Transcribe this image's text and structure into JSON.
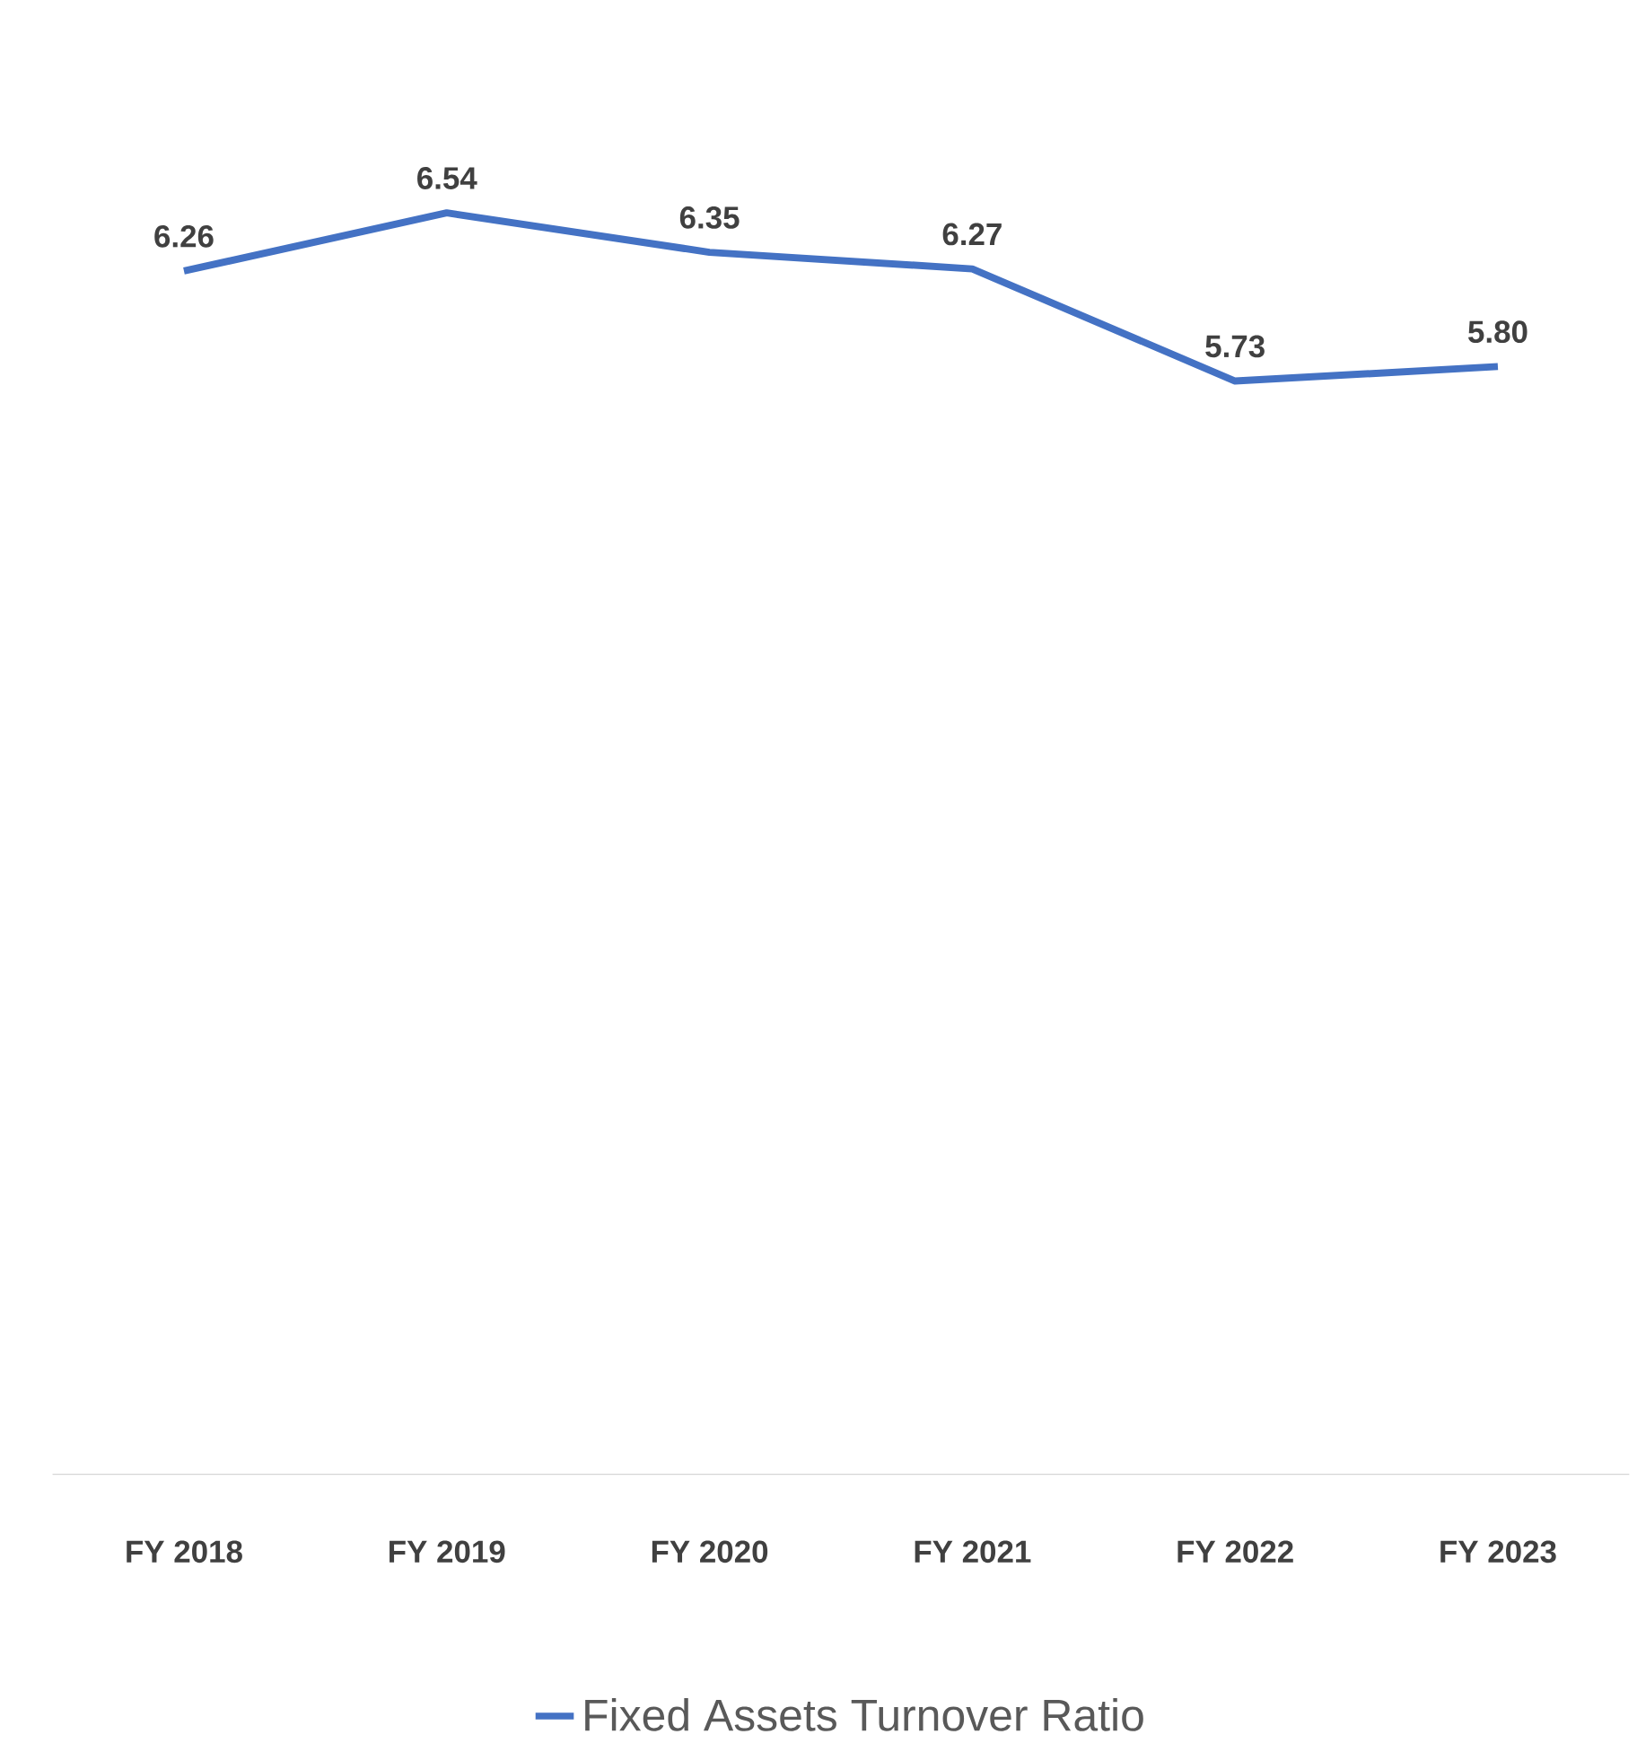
{
  "chart_data": {
    "type": "line",
    "categories": [
      "FY 2018",
      "FY 2019",
      "FY 2020",
      "FY 2021",
      "FY 2022",
      "FY 2023"
    ],
    "series": [
      {
        "name": "Fixed Assets Turnover Ratio",
        "color": "#4472c4",
        "values": [
          6.26,
          6.54,
          6.35,
          6.27,
          5.73,
          5.8
        ],
        "value_labels": [
          "6.26",
          "6.54",
          "6.35",
          "6.27",
          "5.73",
          "5.80"
        ]
      }
    ],
    "legend": "bottom",
    "marker": "none",
    "line_style": "solid"
  }
}
